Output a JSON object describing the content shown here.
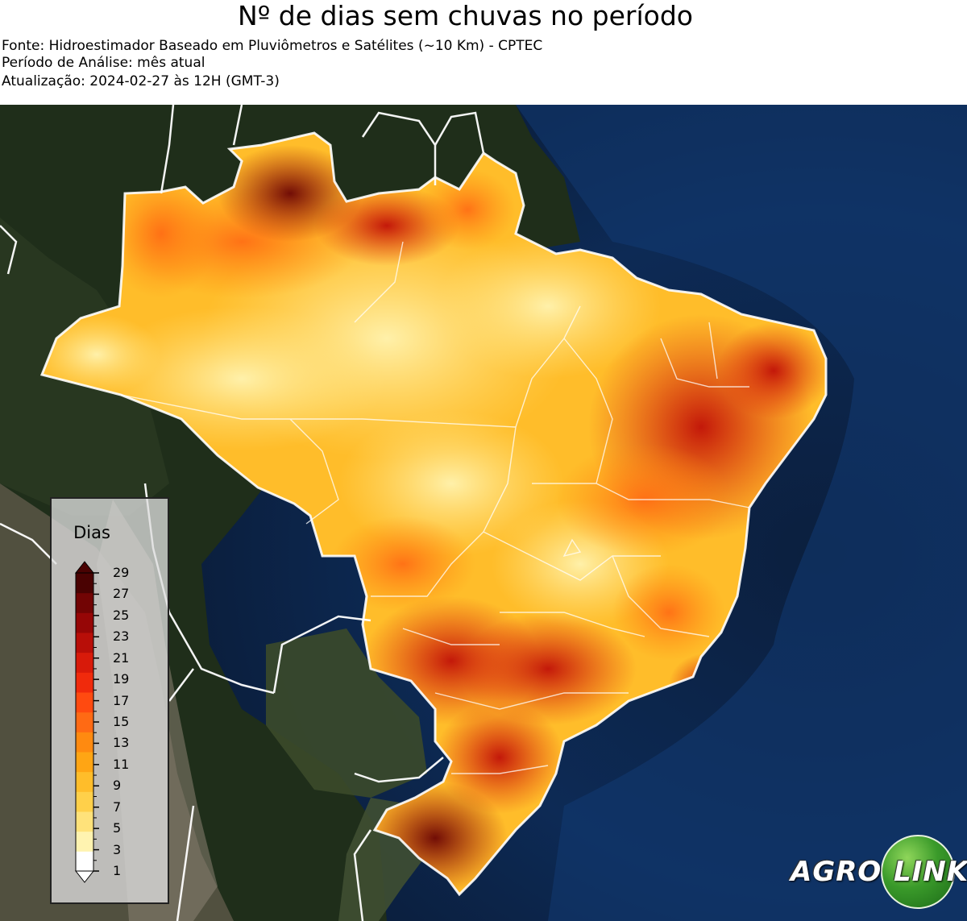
{
  "header": {
    "title": "Nº de dias sem chuvas no período",
    "source": "Fonte: Hidroestimador Baseado em Pluviômetros e Satélites (~10 Km) - CPTEC",
    "period": "Período de Análise: mês atual",
    "update": "Atualização: 2024-02-27 às 12H (GMT-3)"
  },
  "legend": {
    "title": "Dias",
    "ticks": [
      "29",
      "27",
      "25",
      "23",
      "21",
      "19",
      "17",
      "15",
      "13",
      "11",
      "9",
      "7",
      "5",
      "3",
      "1"
    ],
    "colors": [
      "#ffffff",
      "#fff3b0",
      "#ffe27a",
      "#ffd04a",
      "#ffbd2a",
      "#ffa514",
      "#ff8a10",
      "#ff6a14",
      "#ff4a10",
      "#f02a0c",
      "#d81a0a",
      "#b80e08",
      "#960606",
      "#720404",
      "#4a0202"
    ]
  },
  "logo": {
    "part1": "AGRO",
    "part2": "LINK"
  }
}
